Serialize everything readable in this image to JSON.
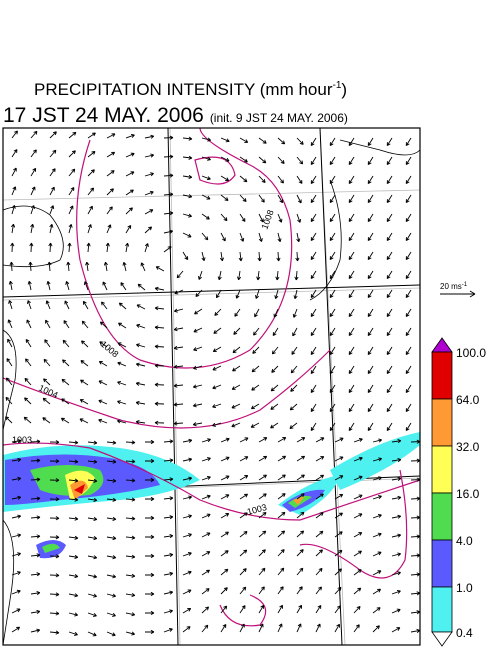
{
  "title": {
    "text": "PRECIPITATION INTENSITY (mm hour",
    "sup": "-1",
    "close": ")"
  },
  "subtitle": {
    "time": "17 JST 24 MAY. 2006",
    "init": "(init. 9 JST 24 MAY. 2006)"
  },
  "scale": {
    "text": "20 ms",
    "sup": "-1"
  },
  "colorbar": {
    "labels": [
      "100.0",
      "64.0",
      "32.0",
      "16.0",
      "4.0",
      "1.0",
      "0.4"
    ]
  },
  "contours": {
    "labels": [
      "1008",
      "1008",
      "1004",
      "1003",
      "1003"
    ]
  }
}
